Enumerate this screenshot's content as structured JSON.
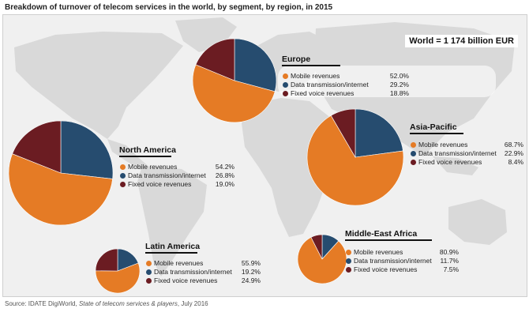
{
  "title": "Breakdown of turnover of telecom services in the world, by segment, by region, in 2015",
  "world_total": "World = 1 174 billion EUR",
  "source": {
    "prefix": "Source: IDATE DigiWorld, ",
    "italic": "State of telecom services & players",
    "suffix": ", July 2016"
  },
  "colors": {
    "mobile": "#e57b25",
    "data": "#264c6f",
    "voice": "#6b1c22",
    "land": "#d9d9d9",
    "sea": "#f0f0f0"
  },
  "chart_data": [
    {
      "type": "pie",
      "title": "Europe",
      "categories": [
        "Mobile revenues",
        "Data transmission/internet",
        "Fixed voice revenues"
      ],
      "values": [
        52.0,
        29.2,
        18.8
      ],
      "labels": [
        "52.0%",
        "29.2%",
        "18.8%"
      ]
    },
    {
      "type": "pie",
      "title": "North America",
      "categories": [
        "Mobile revenues",
        "Data transmission/internet",
        "Fixed voice revenues"
      ],
      "values": [
        54.2,
        26.8,
        19.0
      ],
      "labels": [
        "54.2%",
        "26.8%",
        "19.0%"
      ]
    },
    {
      "type": "pie",
      "title": "Asia-Pacific",
      "categories": [
        "Mobile revenues",
        "Data transmission/internet",
        "Fixed voice revenues"
      ],
      "values": [
        68.7,
        22.9,
        8.4
      ],
      "labels": [
        "68.7%",
        "22.9%",
        "8.4%"
      ]
    },
    {
      "type": "pie",
      "title": "Latin America",
      "categories": [
        "Mobile revenues",
        "Data transmission/internet",
        "Fixed voice revenues"
      ],
      "values": [
        55.9,
        19.2,
        24.9
      ],
      "labels": [
        "55.9%",
        "19.2%",
        "24.9%"
      ]
    },
    {
      "type": "pie",
      "title": "Middle-East Africa",
      "categories": [
        "Mobile revenues",
        "Data transmission/internet",
        "Fixed voice revenues"
      ],
      "values": [
        80.9,
        11.7,
        7.5
      ],
      "labels": [
        "80.9%",
        "11.7%",
        "7.5%"
      ]
    }
  ]
}
